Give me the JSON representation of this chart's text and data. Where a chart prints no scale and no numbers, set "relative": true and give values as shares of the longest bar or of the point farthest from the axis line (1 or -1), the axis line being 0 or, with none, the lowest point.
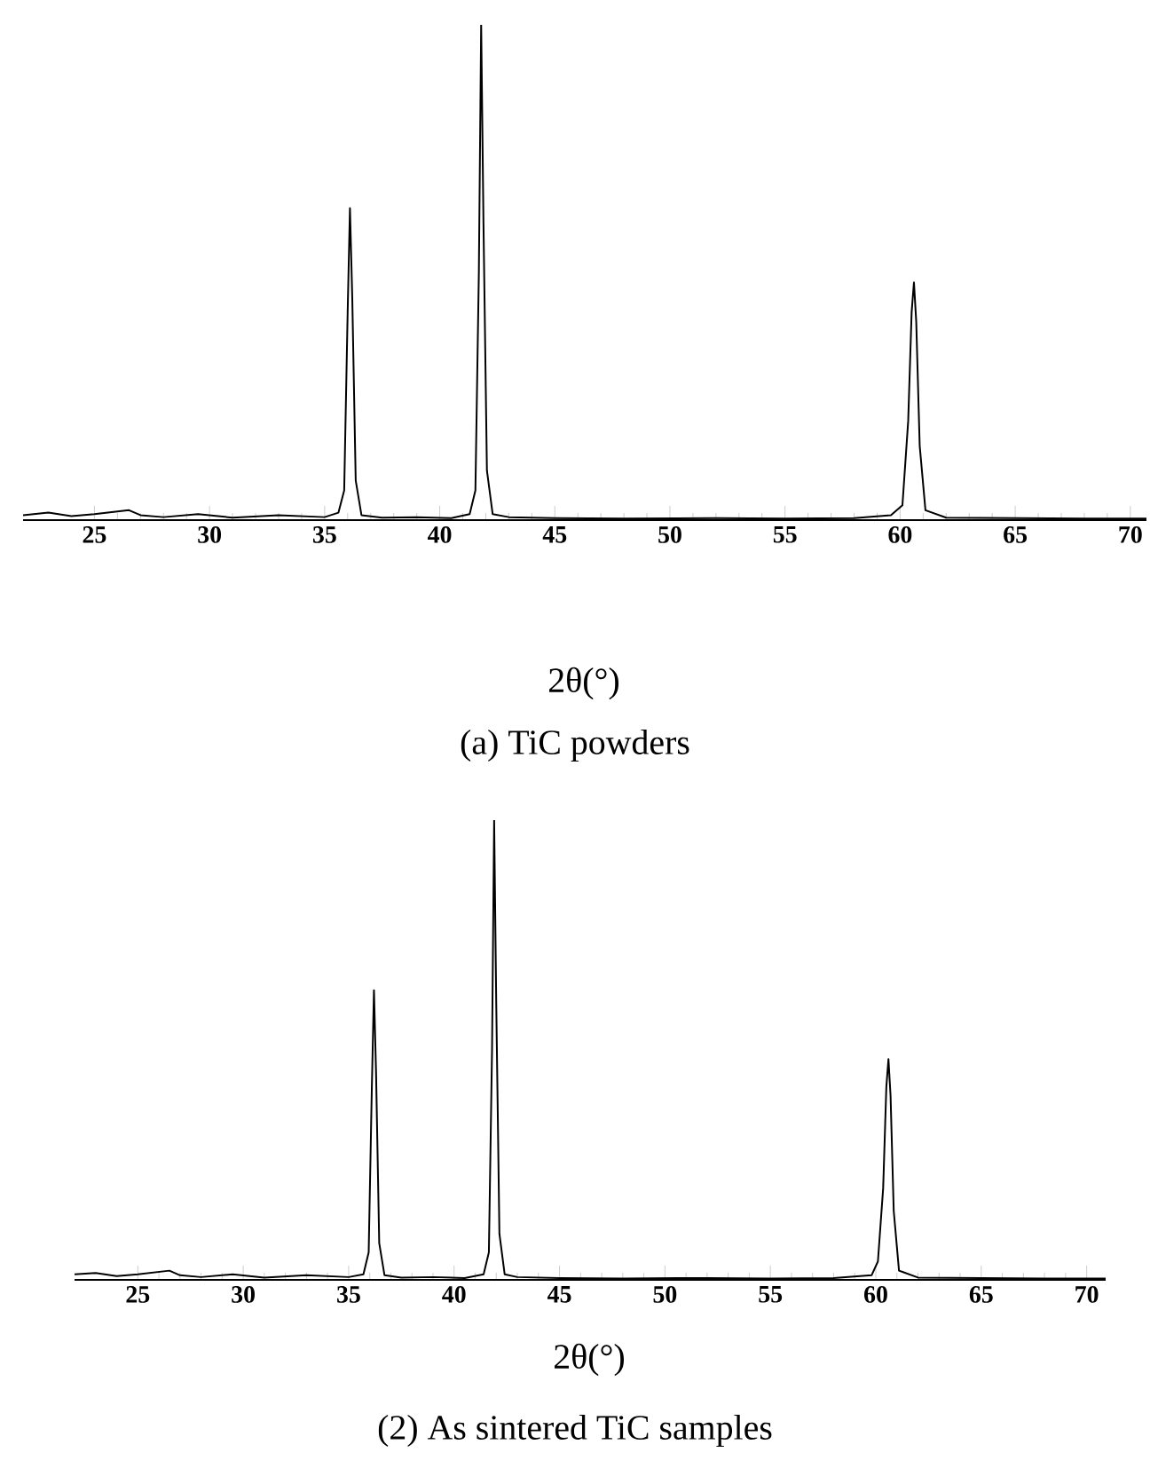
{
  "chart_data": [
    {
      "type": "line",
      "relative": true,
      "xlabel": "2θ(°)",
      "annotations": [
        "(a) TiC powders"
      ],
      "xlim": [
        21.9,
        70.7
      ],
      "xticks": [
        25,
        30,
        35,
        40,
        45,
        50,
        55,
        60,
        65,
        70
      ],
      "tick_labels": "x",
      "marker": "none",
      "line_style": "solid",
      "color": "#000000",
      "x": [
        21.9,
        23,
        24,
        25,
        26.5,
        27,
        28,
        29.5,
        31,
        33,
        35,
        35.6,
        35.85,
        36.0,
        36.1,
        36.2,
        36.35,
        36.6,
        37.5,
        39,
        40.5,
        41.3,
        41.55,
        41.7,
        41.8,
        41.9,
        42.05,
        42.3,
        43,
        45,
        48,
        52,
        55,
        58,
        59.6,
        60.1,
        60.35,
        60.5,
        60.6,
        60.7,
        60.85,
        61.1,
        62,
        65,
        68,
        70.7
      ],
      "values": [
        0.01,
        0.015,
        0.008,
        0.012,
        0.02,
        0.01,
        0.006,
        0.012,
        0.005,
        0.01,
        0.006,
        0.015,
        0.06,
        0.42,
        0.63,
        0.45,
        0.08,
        0.01,
        0.005,
        0.006,
        0.004,
        0.012,
        0.06,
        0.5,
        1.0,
        0.6,
        0.1,
        0.012,
        0.006,
        0.004,
        0.003,
        0.004,
        0.003,
        0.004,
        0.01,
        0.03,
        0.2,
        0.42,
        0.48,
        0.4,
        0.15,
        0.02,
        0.005,
        0.004,
        0.003,
        0.003
      ]
    },
    {
      "type": "line",
      "relative": true,
      "xlabel": "2θ(°)",
      "annotations": [
        "(2) As sintered TiC samples"
      ],
      "xlim": [
        22.0,
        70.9
      ],
      "xticks": [
        25,
        30,
        35,
        40,
        45,
        50,
        55,
        60,
        65,
        70
      ],
      "tick_labels": "x",
      "marker": "none",
      "line_style": "solid",
      "color": "#000000",
      "x": [
        22.0,
        23,
        24,
        25,
        26.5,
        27,
        28,
        29.5,
        31,
        33,
        35,
        35.7,
        35.95,
        36.1,
        36.2,
        36.3,
        36.45,
        36.7,
        37.5,
        39,
        40.5,
        41.4,
        41.65,
        41.8,
        41.9,
        42.0,
        42.15,
        42.4,
        43,
        45,
        48,
        52,
        55,
        58,
        59.8,
        60.1,
        60.35,
        60.5,
        60.6,
        60.7,
        60.85,
        61.1,
        62,
        65,
        68,
        70.9
      ],
      "values": [
        0.012,
        0.015,
        0.008,
        0.012,
        0.02,
        0.01,
        0.006,
        0.012,
        0.005,
        0.01,
        0.006,
        0.012,
        0.06,
        0.42,
        0.63,
        0.45,
        0.08,
        0.01,
        0.005,
        0.006,
        0.004,
        0.012,
        0.06,
        0.5,
        1.0,
        0.6,
        0.1,
        0.012,
        0.006,
        0.004,
        0.003,
        0.004,
        0.003,
        0.004,
        0.01,
        0.04,
        0.2,
        0.42,
        0.48,
        0.4,
        0.15,
        0.02,
        0.005,
        0.004,
        0.003,
        0.003
      ]
    }
  ]
}
